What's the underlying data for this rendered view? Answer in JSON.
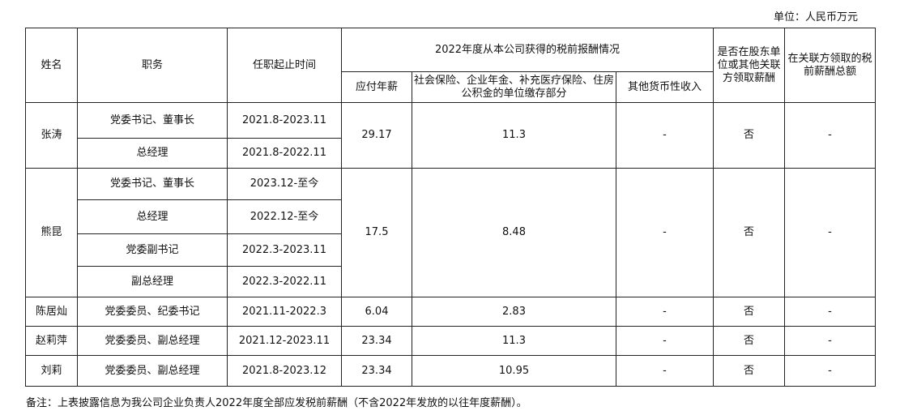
{
  "unit": "单位：人民币万元",
  "headers": {
    "name": "姓名",
    "position": "职务",
    "term": "任职起止时间",
    "group": "2022年度从本公司获得的税前报酬情况",
    "salary": "应付年薪",
    "insurance": "社会保险、企业年金、补充医疗保险、住房公积金的单位缴存部分",
    "other": "其他货币性收入",
    "shareholder": "是否在股东单位或其他关联方领取薪酬",
    "related": "在关联方领取的税前薪酬总额"
  },
  "people": [
    {
      "name": "张涛",
      "roles": [
        {
          "position": "党委书记、董事长",
          "term": "2021.8-2023.11"
        },
        {
          "position": "总经理",
          "term": "2021.8-2022.11"
        }
      ],
      "salary": "29.17",
      "insurance": "11.3",
      "other": "-",
      "shareholder": "否",
      "related": "-"
    },
    {
      "name": "熊昆",
      "roles": [
        {
          "position": "党委书记、董事长",
          "term": "2023.12-至今"
        },
        {
          "position": "总经理",
          "term": "2022.12-至今"
        },
        {
          "position": "党委副书记",
          "term": "2022.3-2023.11"
        },
        {
          "position": "副总经理",
          "term": "2022.3-2022.11"
        }
      ],
      "salary": "17.5",
      "insurance": "8.48",
      "other": "-",
      "shareholder": "否",
      "related": "-"
    },
    {
      "name": "陈居灿",
      "roles": [
        {
          "position": "党委委员、纪委书记",
          "term": "2021.11-2022.3"
        }
      ],
      "salary": "6.04",
      "insurance": "2.83",
      "other": "-",
      "shareholder": "否",
      "related": "-"
    },
    {
      "name": "赵莉萍",
      "roles": [
        {
          "position": "党委委员、副总经理",
          "term": "2021.12-2023.11"
        }
      ],
      "salary": "23.34",
      "insurance": "11.3",
      "other": "-",
      "shareholder": "否",
      "related": "-"
    },
    {
      "name": "刘莉",
      "roles": [
        {
          "position": "党委委员、副总经理",
          "term": "2021.8-2023.12"
        }
      ],
      "salary": "23.34",
      "insurance": "10.95",
      "other": "-",
      "shareholder": "否",
      "related": "-"
    }
  ],
  "note": "备注：上表披露信息为我公司企业负责人2022年度全部应发税前薪酬（不含2022年发放的以往年度薪酬）。"
}
